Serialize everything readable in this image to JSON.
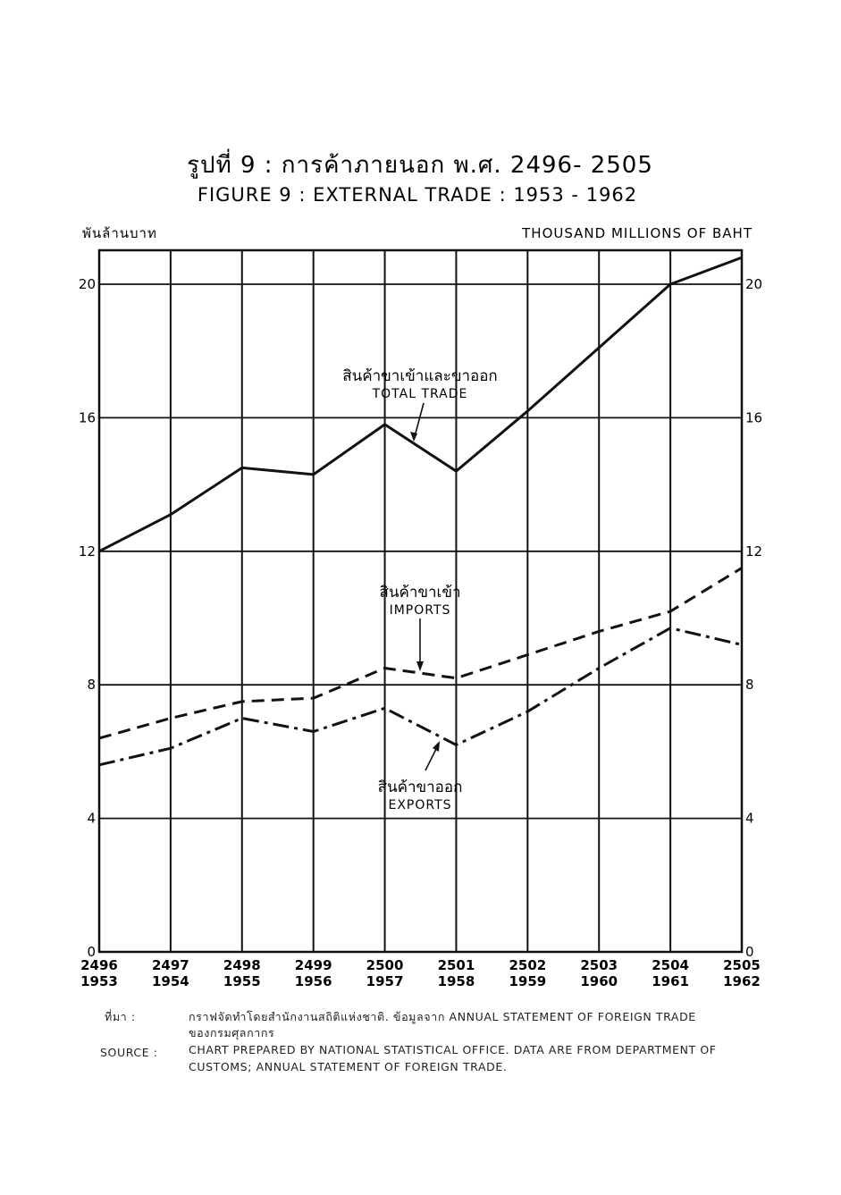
{
  "title_th": "รูปที่ 9 : การค้าภายนอก พ.ศ. 2496- 2505",
  "title_en": "FIGURE 9 :  EXTERNAL  TRADE : 1953 - 1962",
  "left_unit": "พันล้านบาท",
  "right_unit": "THOUSAND  MILLIONS  OF  BAHT",
  "annotations": {
    "total_th": "สินค้าขาเข้าและขาออก",
    "total_en": "TOTAL  TRADE",
    "imports_th": "สินค้าขาเข้า",
    "imports_en": "IMPORTS",
    "exports_th": "สินค้าขาออก",
    "exports_en": "EXPORTS"
  },
  "footer": {
    "th_label": "ที่มา :",
    "th_line1": "กราฟจัดทำโดยสำนักงานสถิติแห่งชาติ.  ข้อมูลจาก  ANNUAL  STATEMENT  OF  FOREIGN  TRADE",
    "th_line2": "ของกรมศุลกากร",
    "en_label": "SOURCE :",
    "en_line1": "CHART  PREPARED  BY  NATIONAL  STATISTICAL  OFFICE.  DATA  ARE  FROM  DEPARTMENT  OF",
    "en_line2": "CUSTOMS;  ANNUAL  STATEMENT  OF  FOREIGN  TRADE."
  },
  "chart_data": {
    "type": "line",
    "x_be": [
      "2496",
      "2497",
      "2498",
      "2499",
      "2500",
      "2501",
      "2502",
      "2503",
      "2504",
      "2505"
    ],
    "x": [
      "1953",
      "1954",
      "1955",
      "1956",
      "1957",
      "1958",
      "1959",
      "1960",
      "1961",
      "1962"
    ],
    "yticks": [
      0,
      4,
      8,
      12,
      16,
      20
    ],
    "ylim": [
      0,
      21
    ],
    "grid": true,
    "series": [
      {
        "name": "TOTAL TRADE",
        "style": "solid",
        "values": [
          12.0,
          13.1,
          14.5,
          14.3,
          15.8,
          14.4,
          16.2,
          18.1,
          20.0,
          20.8
        ]
      },
      {
        "name": "IMPORTS",
        "style": "dashed",
        "values": [
          6.4,
          7.0,
          7.5,
          7.6,
          8.5,
          8.2,
          8.9,
          9.6,
          10.2,
          11.5
        ]
      },
      {
        "name": "EXPORTS",
        "style": "dashdot",
        "values": [
          5.6,
          6.1,
          7.0,
          6.6,
          7.3,
          6.2,
          7.2,
          8.5,
          9.7,
          9.2
        ]
      }
    ]
  }
}
